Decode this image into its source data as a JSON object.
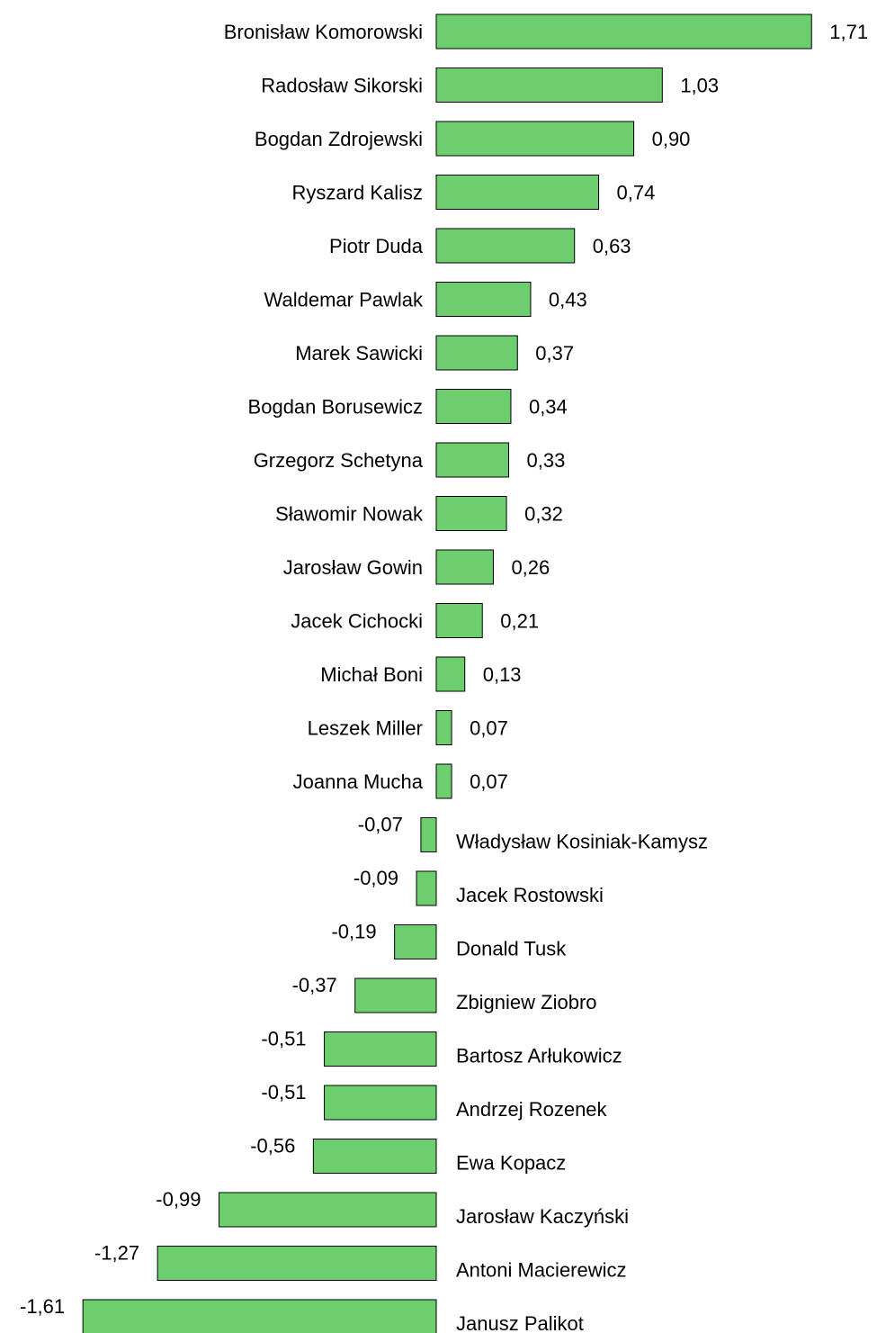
{
  "chart_data": {
    "type": "bar",
    "orientation": "horizontal",
    "title": "",
    "xlabel": "",
    "ylabel": "",
    "grid": false,
    "legend": "none",
    "bar_color": "#6dce6d",
    "bar_stroke": "#000000",
    "xlim": [
      -1.61,
      1.71
    ],
    "categories": [
      "Bronisław Komorowski",
      "Radosław Sikorski",
      "Bogdan Zdrojewski",
      "Ryszard Kalisz",
      "Piotr Duda",
      "Waldemar Pawlak",
      "Marek Sawicki",
      "Bogdan Borusewicz",
      "Grzegorz Schetyna",
      "Sławomir Nowak",
      "Jarosław Gowin",
      "Jacek Cichocki",
      "Michał Boni",
      "Leszek Miller",
      "Joanna Mucha",
      "Władysław Kosiniak-Kamysz",
      "Jacek Rostowski",
      "Donald Tusk",
      "Zbigniew Ziobro",
      "Bartosz Arłukowicz",
      "Andrzej Rozenek",
      "Ewa Kopacz",
      "Jarosław Kaczyński",
      "Antoni Macierewicz",
      "Janusz Palikot"
    ],
    "values": [
      1.71,
      1.03,
      0.9,
      0.74,
      0.63,
      0.43,
      0.37,
      0.34,
      0.33,
      0.32,
      0.26,
      0.21,
      0.13,
      0.07,
      0.07,
      -0.07,
      -0.09,
      -0.19,
      -0.37,
      -0.51,
      -0.51,
      -0.56,
      -0.99,
      -1.27,
      -1.61
    ],
    "value_labels": [
      "1,71",
      "1,03",
      "0,90",
      "0,74",
      "0,63",
      "0,43",
      "0,37",
      "0,34",
      "0,33",
      "0,32",
      "0,26",
      "0,21",
      "0,13",
      "0,07",
      "0,07",
      "-0,07",
      "-0,09",
      "-0,19",
      "-0,37",
      "-0,51",
      "-0,51",
      "-0,56",
      "-0,99",
      "-1,27",
      "-1,61"
    ]
  }
}
